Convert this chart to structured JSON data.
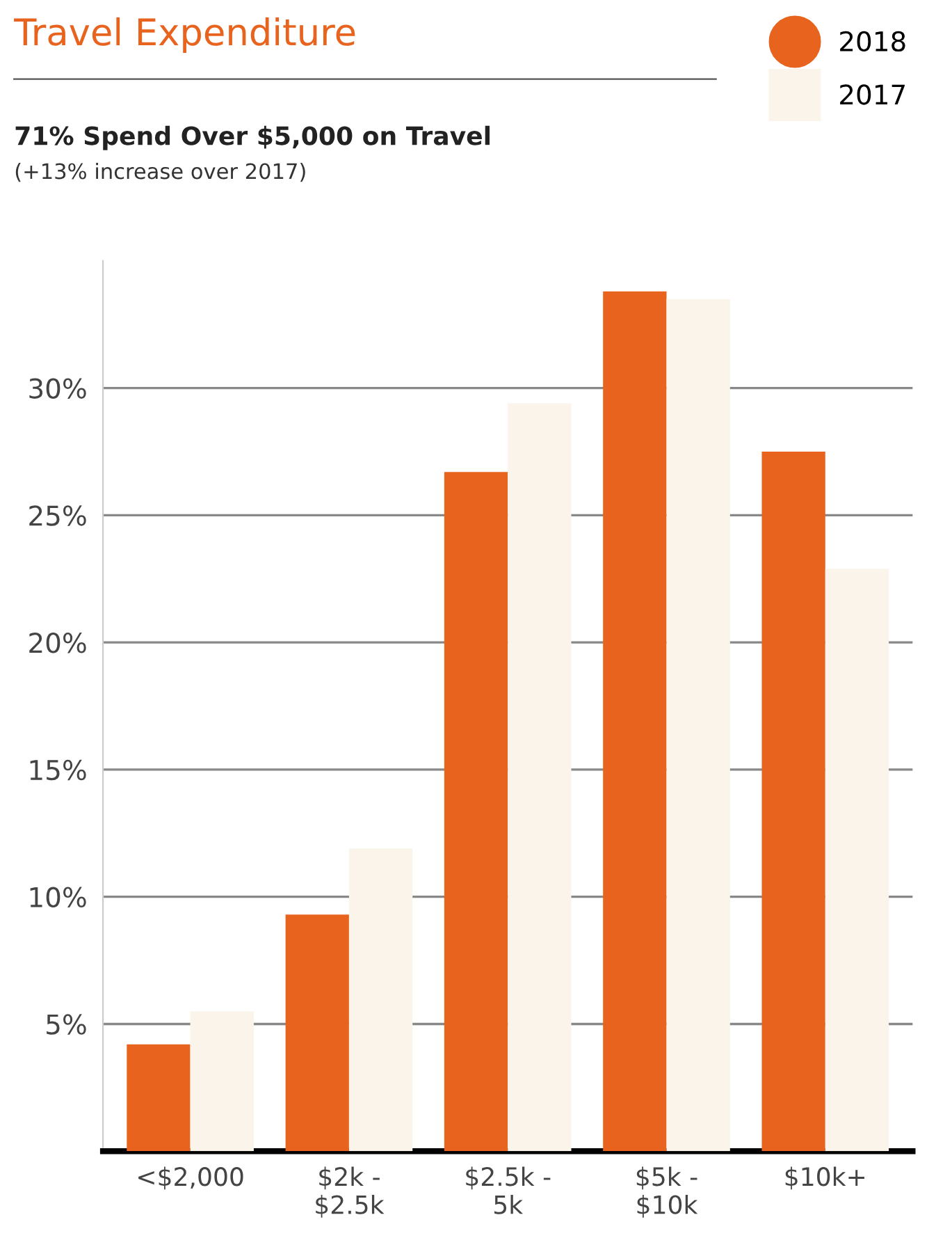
{
  "chart_data": {
    "type": "bar",
    "title": "Travel Expenditure",
    "subtitle": "71% Spend Over $5,000 on Travel",
    "annotations": [
      "(+13% increase over 2017)"
    ],
    "categories": [
      "<$2,000",
      "$2k -\n$2.5k",
      "$2.5k -\n5k",
      "$5k -\n$10k",
      "$10k+"
    ],
    "series": [
      {
        "name": "2018",
        "color": "#e8641e",
        "values": [
          4.2,
          9.3,
          26.7,
          33.8,
          27.5
        ]
      },
      {
        "name": "2017",
        "color": "#fbf4ea",
        "values": [
          5.5,
          11.9,
          29.4,
          33.5,
          22.9
        ]
      }
    ],
    "ylim": [
      0,
      35
    ],
    "yticks": [
      {
        "value": 5,
        "label": "5%"
      },
      {
        "value": 10,
        "label": "10%"
      },
      {
        "value": 15,
        "label": "15%"
      },
      {
        "value": 20,
        "label": "20%"
      },
      {
        "value": 25,
        "label": "25%"
      },
      {
        "value": 30,
        "label": "30%"
      }
    ],
    "grid": "y",
    "legend": "top right"
  }
}
